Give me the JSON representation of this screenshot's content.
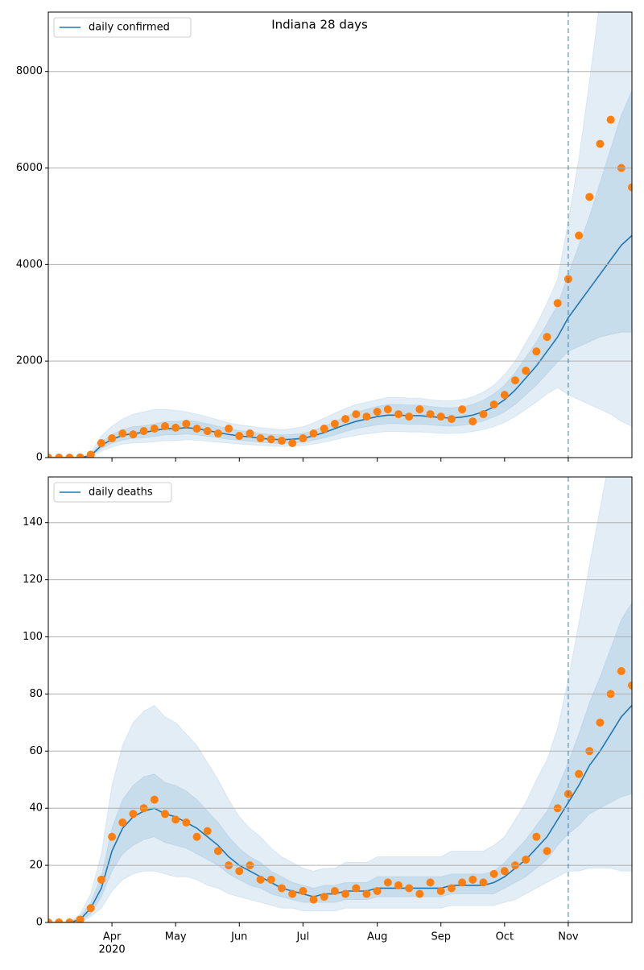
{
  "chart_data": [
    {
      "type": "line",
      "title": "Indiana 28 days",
      "categories": [
        null,
        null,
        null,
        null,
        null,
        null,
        "Apr",
        null,
        null,
        null,
        null,
        null,
        "May",
        null,
        null,
        null,
        null,
        null,
        "Jun",
        null,
        null,
        null,
        null,
        null,
        "Jul",
        null,
        null,
        null,
        null,
        null,
        null,
        "Aug",
        null,
        null,
        null,
        null,
        null,
        "Sep",
        null,
        null,
        null,
        null,
        null,
        "Oct",
        null,
        null,
        null,
        null,
        null,
        "Nov",
        null,
        null,
        null,
        null,
        null,
        null
      ],
      "series": [
        {
          "name": "daily confirmed",
          "color": "#1f77b4",
          "values": [
            0,
            0,
            0,
            2,
            40,
            250,
            380,
            460,
            500,
            520,
            560,
            600,
            600,
            620,
            600,
            560,
            520,
            480,
            450,
            430,
            400,
            380,
            370,
            380,
            400,
            450,
            520,
            600,
            680,
            750,
            800,
            850,
            880,
            880,
            870,
            870,
            850,
            830,
            820,
            840,
            880,
            950,
            1050,
            1200,
            1400,
            1650,
            1900,
            2200,
            2500,
            2900,
            3200,
            3500,
            3800,
            4100,
            4400,
            4600
          ]
        }
      ],
      "observed": {
        "color": "#ff7f0e",
        "values": [
          0,
          0,
          0,
          5,
          60,
          300,
          400,
          500,
          480,
          550,
          600,
          650,
          620,
          700,
          600,
          550,
          500,
          600,
          450,
          500,
          400,
          380,
          350,
          300,
          400,
          500,
          600,
          700,
          800,
          900,
          850,
          950,
          1000,
          900,
          850,
          1000,
          900,
          850,
          800,
          1000,
          750,
          900,
          1100,
          1300,
          1600,
          1800,
          2200,
          2500,
          3200,
          3700,
          4600,
          5400,
          6500,
          7000,
          6000,
          5600
        ]
      },
      "bands": [
        {
          "color": "#1f77b4",
          "lower": [
            0,
            0,
            0,
            0,
            15,
            130,
            220,
            280,
            300,
            310,
            330,
            350,
            350,
            370,
            360,
            340,
            320,
            300,
            280,
            270,
            250,
            240,
            230,
            240,
            250,
            280,
            320,
            370,
            420,
            460,
            490,
            520,
            540,
            540,
            530,
            530,
            520,
            500,
            500,
            510,
            540,
            580,
            640,
            730,
            850,
            1000,
            1150,
            1320,
            1450,
            1300,
            1200,
            1100,
            1000,
            900,
            750,
            650
          ],
          "upper": [
            0,
            0,
            0,
            8,
            100,
            450,
            650,
            800,
            900,
            950,
            1000,
            1000,
            980,
            950,
            900,
            850,
            780,
            720,
            680,
            650,
            620,
            600,
            580,
            600,
            640,
            720,
            820,
            920,
            1020,
            1100,
            1150,
            1200,
            1250,
            1250,
            1230,
            1230,
            1200,
            1180,
            1180,
            1200,
            1260,
            1360,
            1500,
            1720,
            2000,
            2380,
            2750,
            3200,
            3700,
            4900,
            6200,
            7800,
            9500,
            11000,
            12500,
            14000
          ]
        },
        {
          "color": "#1f77b4",
          "lower": [
            0,
            0,
            0,
            1,
            30,
            190,
            300,
            360,
            400,
            410,
            440,
            470,
            470,
            490,
            470,
            440,
            410,
            380,
            360,
            340,
            320,
            300,
            290,
            300,
            320,
            360,
            410,
            470,
            540,
            600,
            640,
            680,
            700,
            700,
            690,
            690,
            680,
            660,
            650,
            670,
            700,
            760,
            840,
            950,
            1100,
            1300,
            1500,
            1740,
            1980,
            2200,
            2300,
            2400,
            2500,
            2550,
            2600,
            2600
          ],
          "upper": [
            0,
            0,
            0,
            4,
            60,
            320,
            480,
            580,
            640,
            660,
            700,
            750,
            750,
            770,
            750,
            700,
            650,
            600,
            560,
            540,
            500,
            480,
            470,
            480,
            500,
            560,
            650,
            750,
            850,
            940,
            1000,
            1060,
            1100,
            1100,
            1090,
            1090,
            1060,
            1040,
            1030,
            1050,
            1100,
            1190,
            1320,
            1500,
            1760,
            2080,
            2400,
            2780,
            3160,
            3800,
            4400,
            5000,
            5700,
            6400,
            7100,
            7600
          ]
        }
      ],
      "ylim": [
        0,
        9230
      ],
      "yticks": [
        0,
        2000,
        4000,
        6000,
        8000
      ],
      "grid": true,
      "legend": "upper left",
      "forecast_start": "Nov"
    },
    {
      "type": "line",
      "categories": [
        null,
        null,
        null,
        null,
        null,
        null,
        "Apr",
        null,
        null,
        null,
        null,
        null,
        "May",
        null,
        null,
        null,
        null,
        null,
        "Jun",
        null,
        null,
        null,
        null,
        null,
        "Jul",
        null,
        null,
        null,
        null,
        null,
        null,
        "Aug",
        null,
        null,
        null,
        null,
        null,
        "Sep",
        null,
        null,
        null,
        null,
        null,
        "Oct",
        null,
        null,
        null,
        null,
        null,
        "Nov",
        null,
        null,
        null,
        null,
        null,
        null
      ],
      "year_label": "2020",
      "series": [
        {
          "name": "daily deaths",
          "color": "#1f77b4",
          "values": [
            0,
            0,
            0,
            1,
            5,
            12,
            25,
            33,
            37,
            39,
            40,
            38,
            37,
            35,
            33,
            30,
            27,
            23,
            20,
            18,
            16,
            14,
            12,
            11,
            10,
            9,
            10,
            10,
            11,
            11,
            11,
            12,
            12,
            12,
            12,
            12,
            12,
            12,
            13,
            13,
            13,
            13,
            14,
            16,
            19,
            22,
            26,
            30,
            36,
            42,
            48,
            55,
            60,
            66,
            72,
            76
          ]
        }
      ],
      "observed": {
        "color": "#ff7f0e",
        "values": [
          0,
          0,
          0,
          1,
          5,
          15,
          30,
          35,
          38,
          40,
          43,
          38,
          36,
          35,
          30,
          32,
          25,
          20,
          18,
          20,
          15,
          15,
          12,
          10,
          11,
          8,
          9,
          11,
          10,
          12,
          10,
          11,
          14,
          13,
          12,
          10,
          14,
          11,
          12,
          14,
          15,
          14,
          17,
          18,
          20,
          22,
          30,
          25,
          40,
          45,
          52,
          60,
          70,
          80,
          88,
          83
        ]
      },
      "bands": [
        {
          "color": "#1f77b4",
          "lower": [
            0,
            0,
            0,
            0,
            2,
            5,
            11,
            15,
            17,
            18,
            18,
            17,
            16,
            16,
            15,
            13,
            12,
            10,
            9,
            8,
            7,
            6,
            5,
            5,
            4,
            4,
            4,
            4,
            5,
            5,
            5,
            5,
            5,
            5,
            5,
            5,
            5,
            5,
            6,
            6,
            6,
            6,
            6,
            7,
            8,
            10,
            12,
            14,
            16,
            18,
            18,
            19,
            19,
            19,
            18,
            18
          ],
          "upper": [
            0,
            0,
            0,
            3,
            10,
            24,
            48,
            62,
            70,
            74,
            76,
            72,
            70,
            66,
            62,
            56,
            50,
            43,
            37,
            33,
            30,
            26,
            23,
            21,
            19,
            18,
            19,
            19,
            21,
            21,
            21,
            23,
            23,
            23,
            23,
            23,
            23,
            23,
            25,
            25,
            25,
            25,
            27,
            30,
            36,
            42,
            50,
            57,
            68,
            85,
            105,
            125,
            145,
            165,
            185,
            200
          ]
        },
        {
          "color": "#1f77b4",
          "lower": [
            0,
            0,
            0,
            0,
            3,
            9,
            18,
            24,
            27,
            29,
            30,
            28,
            27,
            26,
            24,
            22,
            20,
            17,
            15,
            13,
            12,
            10,
            9,
            8,
            7,
            7,
            7,
            7,
            8,
            8,
            8,
            9,
            9,
            9,
            9,
            9,
            9,
            9,
            10,
            10,
            10,
            10,
            10,
            12,
            14,
            16,
            19,
            22,
            27,
            31,
            34,
            38,
            40,
            42,
            44,
            45
          ],
          "upper": [
            0,
            0,
            0,
            2,
            7,
            16,
            33,
            43,
            48,
            51,
            52,
            49,
            48,
            46,
            43,
            39,
            35,
            30,
            26,
            23,
            21,
            18,
            16,
            14,
            13,
            12,
            13,
            13,
            14,
            14,
            14,
            16,
            16,
            16,
            16,
            16,
            16,
            16,
            17,
            17,
            17,
            17,
            18,
            21,
            25,
            29,
            34,
            39,
            47,
            56,
            66,
            77,
            86,
            96,
            106,
            112
          ]
        }
      ],
      "ylim": [
        0,
        156
      ],
      "yticks": [
        0,
        20,
        40,
        60,
        80,
        100,
        120,
        140
      ],
      "grid": true,
      "legend": "upper left",
      "forecast_start": "Nov"
    }
  ]
}
